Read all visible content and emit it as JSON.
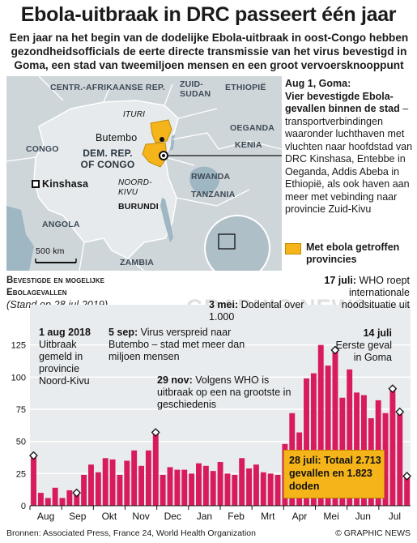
{
  "title": "Ebola-uitbraak in DRC passeert één jaar",
  "subtitle": "Een jaar na het begin van de dodelijke Ebola-uitbraak in oost-Congo hebben gezondheidsofficials de eerte directe transmissie van het virus bevestigd in Goma, een stad van tweemiljoen mensen en een groot vervoersknooppunt",
  "map": {
    "countries": {
      "car": "CENTR.-AFRIKAANSE REP.",
      "south_sudan": "ZUID-SUDAN",
      "ethiopia": "ETHIOPIË",
      "congo": "CONGO",
      "uganda": "OEGANDA",
      "kenya": "KENIA",
      "rwanda": "RWANDA",
      "tanzania": "TANZANIA",
      "burundi": "BURUNDI",
      "angola": "ANGOLA",
      "zambia": "ZAMBIA"
    },
    "drc_line1": "DEM. REP.",
    "drc_line2": "OF CONGO",
    "provinces": {
      "ituri": "ITURI",
      "north_kivu_1": "NOORD-",
      "north_kivu_2": "KIVU"
    },
    "cities": {
      "butembo": "Butembo",
      "kinshasa": "Kinshasa"
    },
    "scale": "500 km",
    "colors": {
      "affected": "#f5b51a",
      "land": "#cfd6da",
      "water": "#9fb6c3"
    }
  },
  "goma_annotation": {
    "heading": "Aug 1, Goma:",
    "bold_text": "Vier bevestigde Ebola-gevallen binnen de stad",
    "text": "– transportverbindingen waaronder luchthaven met vluchten naar hoofdstad van DRC Kinshasa, Entebbe in Oeganda, Addis Abeba in Ethiopië, als ook haven aan meer met vebinding naar provincie Zuid-Kivu"
  },
  "legend": {
    "label": "Met ebola getroffen provincies"
  },
  "chart_heading": {
    "line1": "Bevestigde en mogelijke",
    "line2": "Ebolagevallen",
    "stand": "(Stand op 28 jul 2019)"
  },
  "chart_data": {
    "type": "bar",
    "title": "Bevestigde en mogelijke Ebolagevallen",
    "subtitle": "(Stand op 28 jul 2019)",
    "y_ticks": [
      "0",
      "25",
      "50",
      "75",
      "100",
      "125"
    ],
    "ylim": [
      0,
      150
    ],
    "grid": true,
    "x_month_labels": [
      "Aug",
      "Sep",
      "Okt",
      "Nov",
      "Dec",
      "Jan",
      "Feb",
      "Mrt",
      "Apr",
      "Mei",
      "Jun",
      "Jul"
    ],
    "values": [
      39,
      10,
      6,
      14,
      6,
      12,
      10,
      24,
      32,
      26,
      37,
      36,
      24,
      35,
      43,
      31,
      43,
      57,
      24,
      30,
      28,
      28,
      25,
      33,
      31,
      27,
      34,
      25,
      24,
      37,
      29,
      32,
      26,
      25,
      24,
      48,
      72,
      57,
      99,
      103,
      125,
      109,
      121,
      84,
      106,
      88,
      86,
      68,
      82,
      72,
      91,
      73,
      23
    ],
    "bar_color": "#d81b5c",
    "annotations": [
      {
        "date": "1 aug 2018",
        "text": "Uitbraak gemeld in provincie Noord-Kivu"
      },
      {
        "date": "5 sep:",
        "text": "Virus verspreid naar Butembo – stad met meer dan miljoen mensen"
      },
      {
        "date": "29 nov:",
        "text": "Volgens WHO is uitbraak op een na grootste in geschiedenis"
      },
      {
        "date": "3 mei:",
        "text": "Dodental over 1.000"
      },
      {
        "date": "17 juli:",
        "text": "WHO roept internationale noodsituatie uit"
      },
      {
        "date": "14 juli",
        "text": "Eerste geval in Goma"
      },
      {
        "date": "28 juli:",
        "text": "Totaal 2.713 gevallen en 1.823 doden"
      }
    ]
  },
  "watermark": "GRAPHIC NEWS",
  "footer": {
    "sources": "Bronnen: Associated Press, France 24, World Health Organization",
    "copyright": "© GRAPHIC NEWS"
  }
}
